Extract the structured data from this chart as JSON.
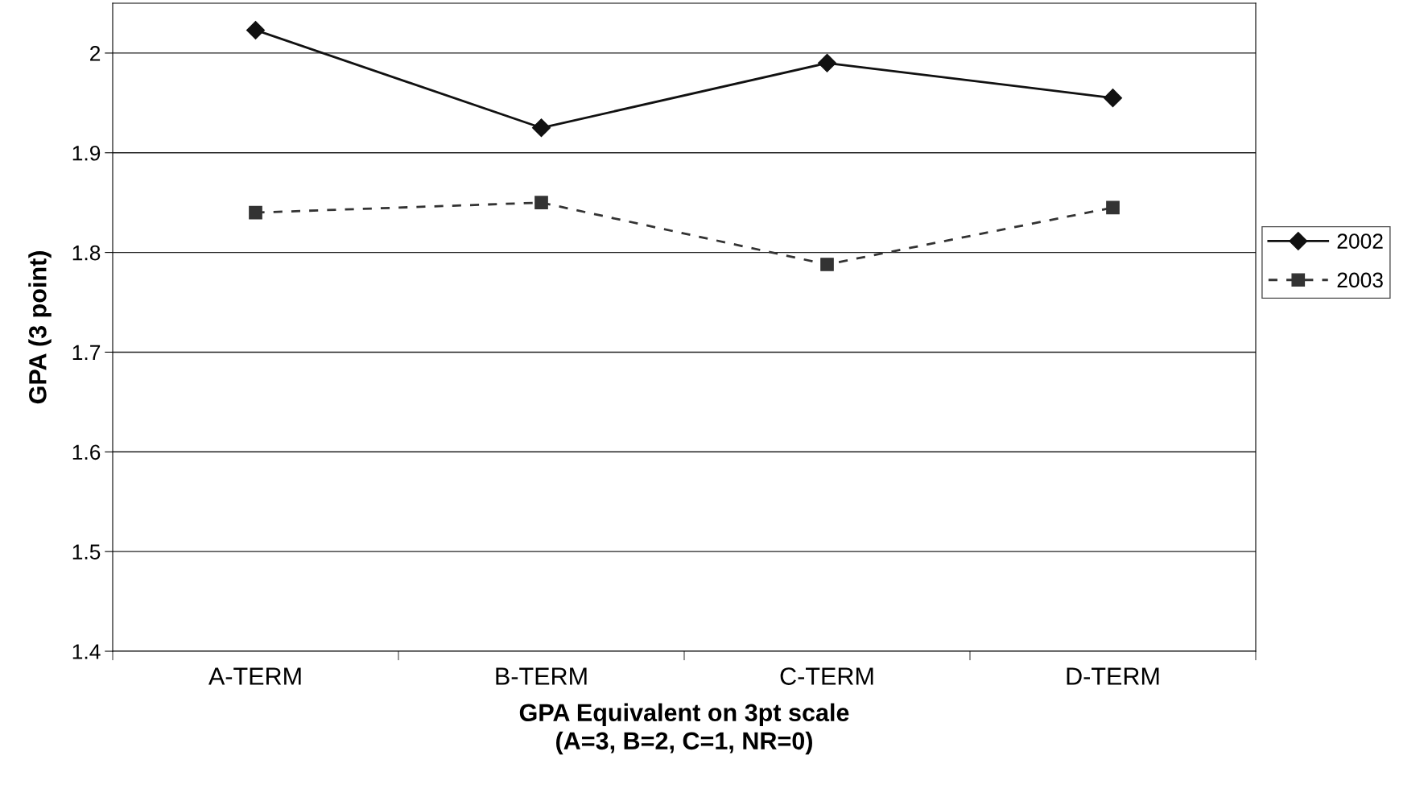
{
  "chart_data": {
    "type": "line",
    "xlabel": "GPA Equivalent on 3pt scale\n(A=3, B=2, C=1, NR=0)",
    "ylabel": "GPA (3 point)",
    "categories": [
      "A-TERM",
      "B-TERM",
      "C-TERM",
      "D-TERM"
    ],
    "series": [
      {
        "name": "2002",
        "color": "#111111",
        "values": [
          2.023,
          1.925,
          1.99,
          1.955
        ],
        "marker": "diamond",
        "line_style": "solid"
      },
      {
        "name": "2003",
        "color": "#333333",
        "values": [
          1.84,
          1.85,
          1.788,
          1.845
        ],
        "marker": "square",
        "line_style": "dashed"
      }
    ],
    "ylim": [
      1.4,
      2.05
    ],
    "yticks": [
      1.4,
      1.5,
      1.6,
      1.7,
      1.8,
      1.9,
      2
    ],
    "grid": "y",
    "legend": "right"
  }
}
